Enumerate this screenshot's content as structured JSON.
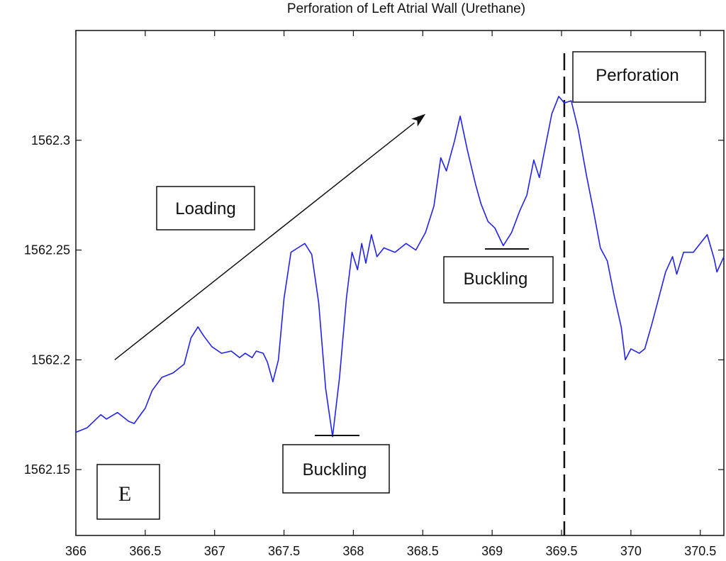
{
  "chart_data": {
    "type": "line",
    "title": "Perforation of Left Atrial Wall (Urethane)",
    "xlabel": "",
    "ylabel": "",
    "xlim": [
      366,
      370.67
    ],
    "ylim": [
      1562.12,
      1562.35
    ],
    "x_ticks": [
      366,
      366.5,
      367,
      367.5,
      368,
      368.5,
      369,
      369.5,
      370,
      370.5
    ],
    "x_tick_labels": [
      "366",
      "366.5",
      "367",
      "367.5",
      "368",
      "368.5",
      "369",
      "369.5",
      "370",
      "370.5"
    ],
    "y_ticks": [
      1562.15,
      1562.2,
      1562.25,
      1562.3
    ],
    "y_tick_labels": [
      "1562.15",
      "1562.2",
      "1562.25",
      "1562.3"
    ],
    "grid": false,
    "series": [
      {
        "color": "#2222ee",
        "points": [
          [
            366,
            1562.167
          ],
          [
            366.08,
            1562.169
          ],
          [
            366.18,
            1562.175
          ],
          [
            366.22,
            1562.173
          ],
          [
            366.3,
            1562.176
          ],
          [
            366.38,
            1562.172
          ],
          [
            366.42,
            1562.171
          ],
          [
            366.5,
            1562.178
          ],
          [
            366.55,
            1562.186
          ],
          [
            366.62,
            1562.192
          ],
          [
            366.7,
            1562.194
          ],
          [
            366.78,
            1562.198
          ],
          [
            366.83,
            1562.21
          ],
          [
            366.88,
            1562.215
          ],
          [
            366.92,
            1562.211
          ],
          [
            366.98,
            1562.206
          ],
          [
            367.05,
            1562.203
          ],
          [
            367.12,
            1562.204
          ],
          [
            367.18,
            1562.201
          ],
          [
            367.22,
            1562.203
          ],
          [
            367.27,
            1562.201
          ],
          [
            367.3,
            1562.204
          ],
          [
            367.35,
            1562.203
          ],
          [
            367.38,
            1562.199
          ],
          [
            367.42,
            1562.19
          ],
          [
            367.46,
            1562.2
          ],
          [
            367.5,
            1562.228
          ],
          [
            367.55,
            1562.249
          ],
          [
            367.6,
            1562.251
          ],
          [
            367.65,
            1562.253
          ],
          [
            367.7,
            1562.248
          ],
          [
            367.75,
            1562.226
          ],
          [
            367.8,
            1562.187
          ],
          [
            367.85,
            1562.165
          ],
          [
            367.9,
            1562.192
          ],
          [
            367.95,
            1562.228
          ],
          [
            367.99,
            1562.249
          ],
          [
            368.03,
            1562.241
          ],
          [
            368.06,
            1562.253
          ],
          [
            368.09,
            1562.244
          ],
          [
            368.13,
            1562.257
          ],
          [
            368.17,
            1562.247
          ],
          [
            368.22,
            1562.251
          ],
          [
            368.3,
            1562.249
          ],
          [
            368.38,
            1562.253
          ],
          [
            368.45,
            1562.25
          ],
          [
            368.52,
            1562.258
          ],
          [
            368.58,
            1562.27
          ],
          [
            368.63,
            1562.292
          ],
          [
            368.67,
            1562.286
          ],
          [
            368.73,
            1562.3
          ],
          [
            368.77,
            1562.311
          ],
          [
            368.82,
            1562.296
          ],
          [
            368.88,
            1562.28
          ],
          [
            368.92,
            1562.271
          ],
          [
            368.97,
            1562.263
          ],
          [
            369.02,
            1562.26
          ],
          [
            369.08,
            1562.252
          ],
          [
            369.14,
            1562.258
          ],
          [
            369.2,
            1562.268
          ],
          [
            369.25,
            1562.275
          ],
          [
            369.3,
            1562.291
          ],
          [
            369.34,
            1562.283
          ],
          [
            369.38,
            1562.296
          ],
          [
            369.43,
            1562.312
          ],
          [
            369.48,
            1562.32
          ],
          [
            369.52,
            1562.317
          ],
          [
            369.57,
            1562.318
          ],
          [
            369.62,
            1562.305
          ],
          [
            369.68,
            1562.284
          ],
          [
            369.73,
            1562.268
          ],
          [
            369.78,
            1562.251
          ],
          [
            369.83,
            1562.245
          ],
          [
            369.88,
            1562.229
          ],
          [
            369.93,
            1562.215
          ],
          [
            369.96,
            1562.2
          ],
          [
            370.0,
            1562.205
          ],
          [
            370.06,
            1562.203
          ],
          [
            370.1,
            1562.205
          ],
          [
            370.15,
            1562.216
          ],
          [
            370.2,
            1562.228
          ],
          [
            370.25,
            1562.24
          ],
          [
            370.3,
            1562.247
          ],
          [
            370.33,
            1562.239
          ],
          [
            370.38,
            1562.249
          ],
          [
            370.45,
            1562.249
          ],
          [
            370.5,
            1562.253
          ],
          [
            370.55,
            1562.257
          ],
          [
            370.6,
            1562.246
          ],
          [
            370.62,
            1562.24
          ],
          [
            370.67,
            1562.247
          ]
        ]
      }
    ],
    "vline": {
      "x": 369.52,
      "style": "dashed"
    },
    "arrow": {
      "from": [
        366.28,
        1562.2
      ],
      "to": [
        368.52,
        1562.312
      ]
    },
    "annotations": {
      "loading": "Loading",
      "buckling_1": "Buckling",
      "buckling_2": "Buckling",
      "perforation": "Perforation",
      "panel_label": "E"
    }
  }
}
